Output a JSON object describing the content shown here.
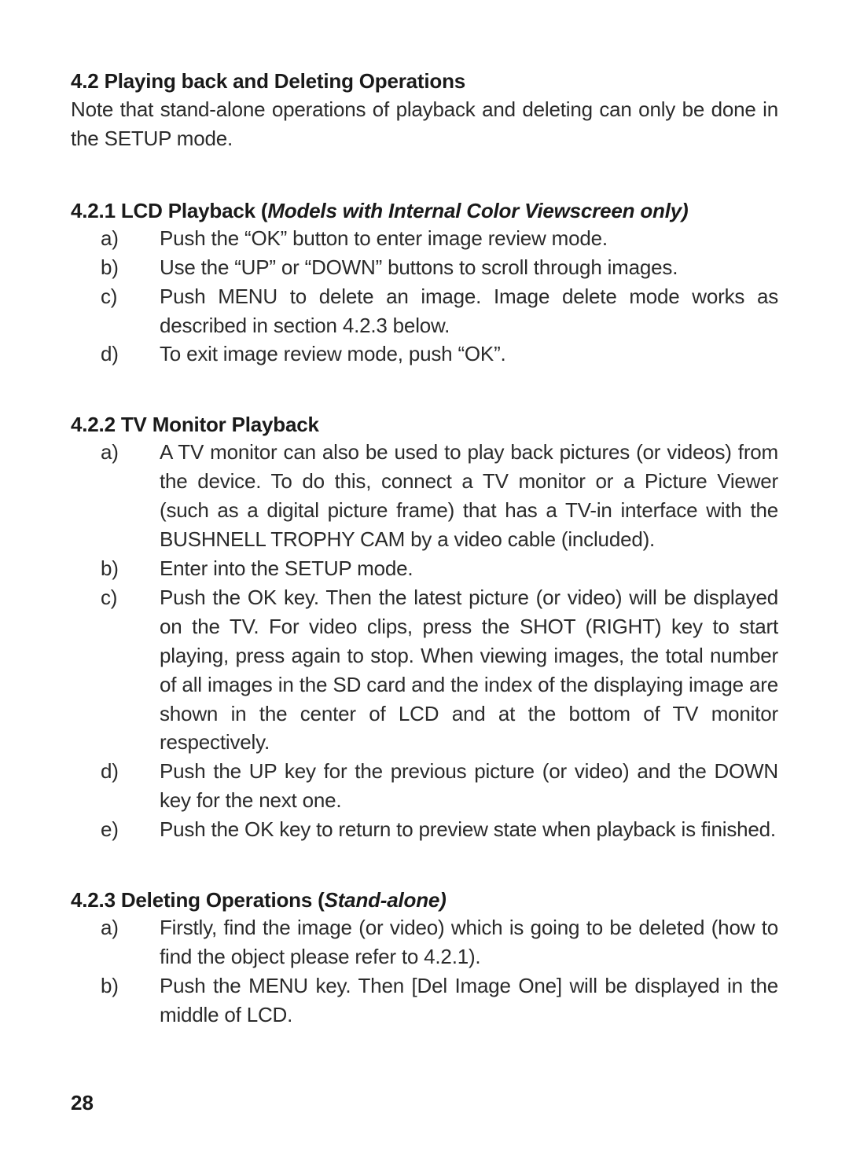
{
  "s42": {
    "heading": "4.2 Playing back and Deleting Operations",
    "body": "Note that stand-alone operations of playback and deleting can only be done in the SETUP mode."
  },
  "s421": {
    "heading_prefix": "4.2.1 LCD Playback (",
    "heading_italic": "Models with Internal Color Viewscreen only",
    "heading_suffix": ")",
    "items": [
      {
        "m": "a)",
        "t": "Push the “OK” button to enter image review mode."
      },
      {
        "m": "b)",
        "t": "Use the “UP” or “DOWN” buttons to scroll through images."
      },
      {
        "m": "c)",
        "t": "Push MENU to delete an image. Image delete mode works as described in section 4.2.3 below."
      },
      {
        "m": "d)",
        "t": "To exit image review mode, push “OK”."
      }
    ]
  },
  "s422": {
    "heading": "4.2.2 TV Monitor Playback",
    "items": [
      {
        "m": "a)",
        "t": "A TV monitor can also be used to play back pictures (or videos) from the device. To do this, connect a TV monitor or a Picture Viewer (such as a digital picture frame) that has a TV-in interface with the BUSHNELL TROPHY CAM by a video cable (included)."
      },
      {
        "m": "b)",
        "t": "Enter into the SETUP mode."
      },
      {
        "m": "c)",
        "t": "Push the OK key. Then the latest picture (or video) will be displayed on the TV. For video clips, press the SHOT (RIGHT) key to start playing, press again to stop. When viewing images, the total number of all images in the SD card and the index of the displaying image are shown in the center of LCD and at the bottom of TV monitor respectively."
      },
      {
        "m": "d)",
        "t": "Push the UP key for the previous picture (or video) and the DOWN key for the next one."
      },
      {
        "m": "e)",
        "t": "Push the OK key to return to preview state when playback is finished."
      }
    ]
  },
  "s423": {
    "heading_prefix": "4.2.3 Deleting Operations (",
    "heading_italic": "Stand-alone)",
    "items": [
      {
        "m": "a)",
        "t": "Firstly, find the image (or video) which is going to be deleted (how to find the object please refer to 4.2.1)."
      },
      {
        "m": "b)",
        "t": "Push the MENU key. Then [Del Image One] will be displayed in the middle of LCD."
      }
    ]
  },
  "page_number": "28"
}
